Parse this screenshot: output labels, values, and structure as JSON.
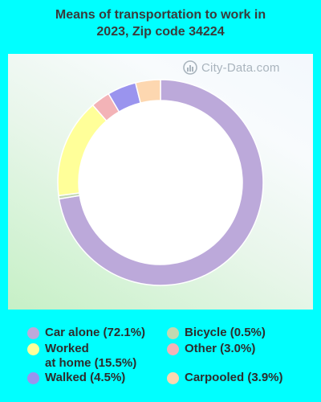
{
  "title": {
    "line1": "Means of transportation to work in",
    "line2": "2023, Zip code 34224"
  },
  "watermark": "City-Data.com",
  "chart_data": {
    "type": "pie",
    "title": "Means of transportation to work in 2023, Zip code 34224",
    "donut": true,
    "slices": [
      {
        "label": "Car alone (72.1%)",
        "value": 72.1,
        "color": "#bca9da"
      },
      {
        "label": "Bicycle (0.5%)",
        "value": 0.5,
        "color": "#c2d9b0"
      },
      {
        "label": "Worked at home (15.5%)",
        "value": 15.5,
        "color": "#ffff99"
      },
      {
        "label": "Other (3.0%)",
        "value": 3.0,
        "color": "#f3b3b7"
      },
      {
        "label": "Walked (4.5%)",
        "value": 4.5,
        "color": "#9a94ee"
      },
      {
        "label": "Carpooled (3.9%)",
        "value": 3.9,
        "color": "#fdd7b0"
      }
    ],
    "legend_position": "bottom"
  },
  "legend": {
    "car_alone": "Car alone (72.1%)",
    "worked_line1": "Worked",
    "worked_line2": "at home (15.5%)",
    "walked": "Walked (4.5%)",
    "bicycle": "Bicycle (0.5%)",
    "other": "Other (3.0%)",
    "carpooled": "Carpooled (3.9%)"
  }
}
